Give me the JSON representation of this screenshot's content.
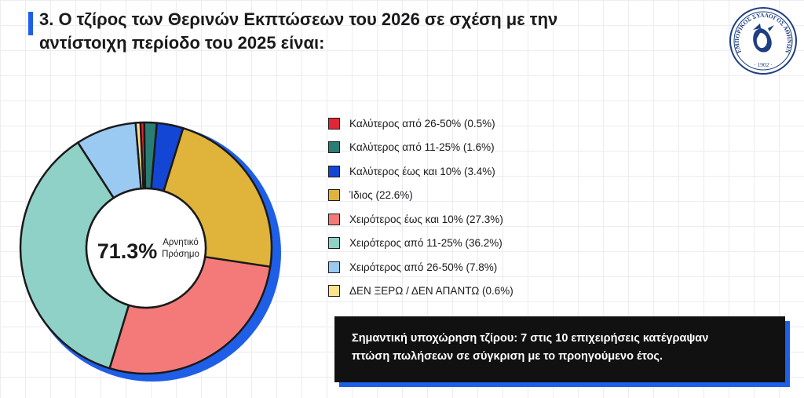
{
  "title": {
    "line1": "3. Ο τζίρος των Θερινών Εκπτώσεων του 2026 σε σχέση με την",
    "line2": "αντίστοιχη περίοδο του 2025 είναι:"
  },
  "logo": {
    "text": "ΕΜΠΟΡΙΚΟΣ ΣΥΛΛΟΓΟΣ ΑΘΗΝΩΝ",
    "year": "· 1902 ·",
    "icon": "hermes-head-seal-icon"
  },
  "chart_data": {
    "type": "pie",
    "donut": true,
    "center_value": "71.3%",
    "center_label_line1": "Αρνητικό",
    "center_label_line2": "Πρόσημο",
    "slices": [
      {
        "label": "Καλύτερος από 26-50% (0.5%)",
        "value": 0.5,
        "color": "#e32636"
      },
      {
        "label": "Καλύτερος από 11-25% (1.6%)",
        "value": 1.6,
        "color": "#2a7d74"
      },
      {
        "label": "Καλύτερος έως και 10% (3.4%)",
        "value": 3.4,
        "color": "#1446d6"
      },
      {
        "label": "Ίδιος (22.6%)",
        "value": 22.6,
        "color": "#e0b33a"
      },
      {
        "label": "Χειρότερος έως και 10% (27.3%)",
        "value": 27.3,
        "color": "#f47a7a"
      },
      {
        "label": "Χειρότερος από 11-25% (36.2%)",
        "value": 36.2,
        "color": "#8fd1c6"
      },
      {
        "label": "Χειρότερος από 26-50% (7.8%)",
        "value": 7.8,
        "color": "#9ac9f2"
      },
      {
        "label": "ΔΕΝ ΞΕΡΩ / ΔΕΝ ΑΠΑΝΤΩ (0.6%)",
        "value": 0.6,
        "color": "#fbe38a"
      }
    ],
    "legend_position": "right"
  },
  "callout": {
    "line1": "Σημαντική υποχώρηση τζίρου: 7 στις 10 επιχειρήσεις κατέγραψαν",
    "line2": "πτώση πωλήσεων σε σύγκριση με το προηγούμενο έτος."
  },
  "colors": {
    "accent_blue": "#1f5fe8",
    "callout_bg": "#111111"
  }
}
